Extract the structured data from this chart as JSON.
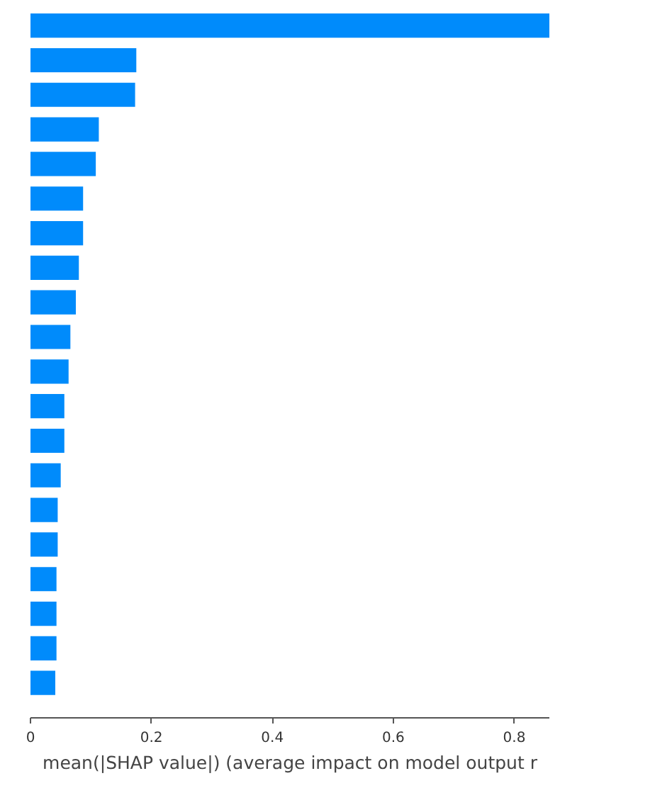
{
  "chart_data": {
    "type": "bar",
    "orientation": "horizontal",
    "xlabel": "mean(|SHAP value|) (average impact on model output r",
    "categories": [
      null,
      null,
      null,
      null,
      null,
      null,
      null,
      null,
      null,
      null,
      null,
      null,
      null,
      null,
      null,
      null,
      null,
      null,
      null,
      null
    ],
    "values": [
      0.858,
      0.175,
      0.173,
      0.113,
      0.108,
      0.087,
      0.087,
      0.08,
      0.075,
      0.066,
      0.063,
      0.056,
      0.056,
      0.05,
      0.045,
      0.045,
      0.043,
      0.043,
      0.043,
      0.041
    ],
    "color": "#008bfb",
    "xlim": [
      0,
      0.858
    ],
    "xticks": [
      0,
      0.2,
      0.4,
      0.6,
      0.8
    ],
    "grid": false,
    "tick_labels": "x"
  }
}
